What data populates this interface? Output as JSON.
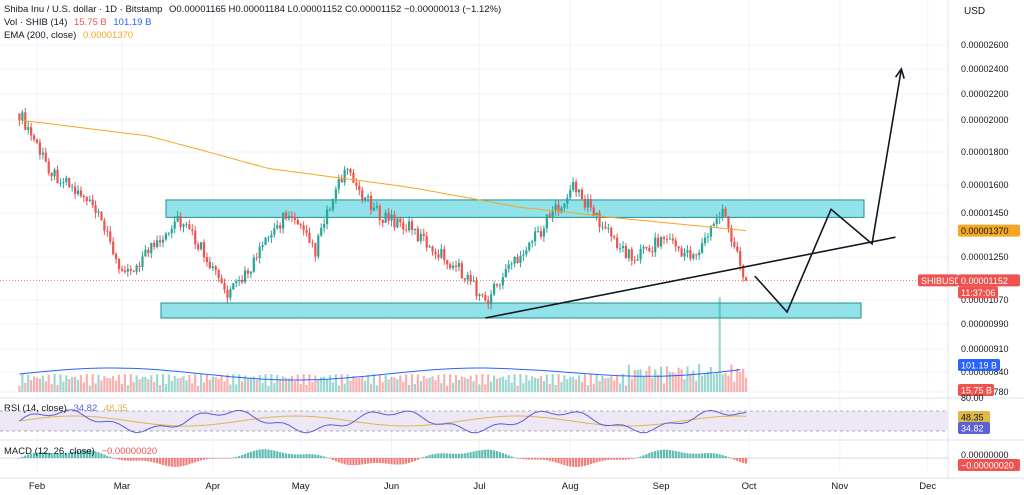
{
  "header": {
    "symbol_line": "Shiba Inu / U.S. dollar · 1D · Bitstamp",
    "ohlc": "O0.00001165 H0.00001184 L0.00001152 C0.00001152 −0.00000013 (−1.12%)",
    "vol_label": "Vol · SHIB (14)",
    "vol_value_1": "15.75 B",
    "vol_value_2": "101.19 B",
    "ema_label": "EMA (200, close)",
    "ema_value": "0.00001370",
    "currency": "USD"
  },
  "colors": {
    "up": "#26a69a",
    "down": "#ef5350",
    "ema": "#f5a623",
    "zone_fill": "#7fdde6",
    "zone_stroke": "#1d8f96",
    "rsi": "#5b5fd8",
    "rsi_ma": "#e0b84a",
    "rsi_band": "#ede7f6",
    "macd_line": "#2962ff",
    "signal_line": "#ff6d00"
  },
  "chart_data": {
    "type": "candlestick",
    "x_labels": [
      "Feb",
      "Mar",
      "Apr",
      "May",
      "Jun",
      "Jul",
      "Aug",
      "Sep",
      "Oct",
      "Nov",
      "Dec"
    ],
    "y_ticks": [
      "0.00002600",
      "0.00002400",
      "0.00002200",
      "0.00002000",
      "0.00001800",
      "0.00001600",
      "0.00001450",
      "0.00001250",
      "0.00001070",
      "0.00000990",
      "0.00000910",
      "0.00000840",
      "0.00000780"
    ],
    "price_labels": [
      {
        "text": "0.00001370",
        "kind": "ema"
      },
      {
        "text": "0.00001152",
        "kind": "price",
        "name": "SHIBUSD",
        "sub": "11:37:06"
      },
      {
        "text": "101.19 B",
        "kind": "vol-ma"
      },
      {
        "text": "15.75 B",
        "kind": "vol"
      }
    ],
    "zones": [
      {
        "name": "resistance",
        "low": 1.43e-05,
        "high": 1.52e-05
      },
      {
        "name": "support",
        "low": 1.01e-05,
        "high": 1.06e-05
      }
    ],
    "price_key_points": [
      {
        "date": "Jan 26",
        "price": 2.05e-05
      },
      {
        "date": "Feb 6",
        "price": 1.68e-05
      },
      {
        "date": "Feb 20",
        "price": 1.48e-05
      },
      {
        "date": "Mar 2",
        "price": 1.16e-05
      },
      {
        "date": "Mar 20",
        "price": 1.43e-05
      },
      {
        "date": "Mar 29",
        "price": 1.28e-05
      },
      {
        "date": "Apr 6",
        "price": 1.08e-05
      },
      {
        "date": "Apr 16",
        "price": 1.25e-05
      },
      {
        "date": "Apr 26",
        "price": 1.45e-05
      },
      {
        "date": "May 6",
        "price": 1.28e-05
      },
      {
        "date": "May 16",
        "price": 1.68e-05
      },
      {
        "date": "May 26",
        "price": 1.46e-05
      },
      {
        "date": "Jun 6",
        "price": 1.39e-05
      },
      {
        "date": "Jun 16",
        "price": 1.28e-05
      },
      {
        "date": "Jun 26",
        "price": 1.18e-05
      },
      {
        "date": "Jul 3",
        "price": 1.06e-05
      },
      {
        "date": "Jul 13",
        "price": 1.24e-05
      },
      {
        "date": "Jul 23",
        "price": 1.39e-05
      },
      {
        "date": "Aug 2",
        "price": 1.59e-05
      },
      {
        "date": "Aug 12",
        "price": 1.39e-05
      },
      {
        "date": "Aug 22",
        "price": 1.24e-05
      },
      {
        "date": "Sep 2",
        "price": 1.34e-05
      },
      {
        "date": "Sep 12",
        "price": 1.24e-05
      },
      {
        "date": "Sep 22",
        "price": 1.46e-05
      },
      {
        "date": "Sep 30",
        "price": 1.152e-05
      }
    ],
    "ema200_points": [
      {
        "date": "Jan 26",
        "price": 2e-05
      },
      {
        "date": "Mar 10",
        "price": 1.9e-05
      },
      {
        "date": "Apr 20",
        "price": 1.7e-05
      },
      {
        "date": "Jun 10",
        "price": 1.58e-05
      },
      {
        "date": "Jul 15",
        "price": 1.48e-05
      },
      {
        "date": "Aug 15",
        "price": 1.43e-05
      },
      {
        "date": "Sep 30",
        "price": 1.37e-05
      }
    ],
    "trendline": {
      "from": {
        "date": "Jul 3",
        "price": 1.01e-05
      },
      "to": {
        "date": "Nov 20",
        "price": 1.34e-05
      }
    },
    "projection_path": [
      {
        "date": "Oct 3",
        "price": 1.17e-05
      },
      {
        "date": "Oct 14",
        "price": 1.03e-05
      },
      {
        "date": "Oct 29",
        "price": 1.47e-05
      },
      {
        "date": "Nov 12",
        "price": 1.31e-05
      },
      {
        "date": "Nov 22",
        "price": 2.4e-05
      }
    ],
    "volume_note": "volume histogram with 14-period MA; spike near Sep 21",
    "rsi": {
      "label": "RSI (14, close)",
      "value": "34.82",
      "ma_value": "48.35",
      "upper": 70,
      "lower": 30,
      "scale_top": "80.00"
    },
    "macd": {
      "label": "MACD (12, 26, close)",
      "value": "−0.00000020",
      "zero_label": "0.00000000"
    }
  }
}
